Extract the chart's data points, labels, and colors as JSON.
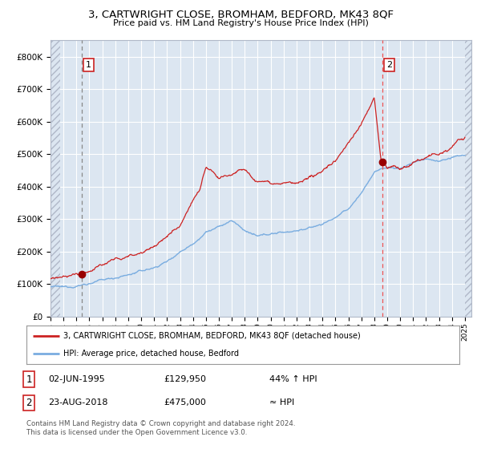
{
  "title1": "3, CARTWRIGHT CLOSE, BROMHAM, BEDFORD, MK43 8QF",
  "title2": "Price paid vs. HM Land Registry's House Price Index (HPI)",
  "legend_line1": "3, CARTWRIGHT CLOSE, BROMHAM, BEDFORD, MK43 8QF (detached house)",
  "legend_line2": "HPI: Average price, detached house, Bedford",
  "annotation1_label": "1",
  "annotation1_date": "02-JUN-1995",
  "annotation1_price": "£129,950",
  "annotation1_hpi": "44% ↑ HPI",
  "annotation2_label": "2",
  "annotation2_date": "23-AUG-2018",
  "annotation2_price": "£475,000",
  "annotation2_hpi": "≈ HPI",
  "copyright": "Contains HM Land Registry data © Crown copyright and database right 2024.\nThis data is licensed under the Open Government Licence v3.0.",
  "hpi_line_color": "#7aade0",
  "price_line_color": "#cc2222",
  "background_color": "#dce6f1",
  "plot_bg_color": "#dce6f1",
  "vline1_color": "#888888",
  "vline2_color": "#ee5555",
  "marker_color": "#990000",
  "ylim": [
    0,
    850000
  ],
  "yticks": [
    0,
    100000,
    200000,
    300000,
    400000,
    500000,
    600000,
    700000,
    800000
  ],
  "ytick_labels": [
    "£0",
    "£100K",
    "£200K",
    "£300K",
    "£400K",
    "£500K",
    "£600K",
    "£700K",
    "£800K"
  ],
  "sale1_x": 1995.42,
  "sale1_y": 129950,
  "sale2_x": 2018.64,
  "sale2_y": 475000,
  "xmin": 1993.0,
  "xmax": 2025.5,
  "hpi_anchors_x": [
    1993,
    1994,
    1995,
    1996,
    1997,
    1998,
    1999,
    2000,
    2001,
    2002,
    2003,
    2004,
    2005,
    2006,
    2007,
    2008,
    2009,
    2010,
    2011,
    2012,
    2013,
    2014,
    2015,
    2016,
    2017,
    2018,
    2019,
    2020,
    2021,
    2022,
    2023,
    2024,
    2025
  ],
  "hpi_anchors_y": [
    92000,
    90000,
    95000,
    102000,
    112000,
    120000,
    128000,
    140000,
    150000,
    170000,
    200000,
    225000,
    260000,
    275000,
    295000,
    265000,
    245000,
    255000,
    260000,
    265000,
    272000,
    285000,
    305000,
    330000,
    380000,
    445000,
    460000,
    455000,
    475000,
    485000,
    478000,
    488000,
    497000
  ],
  "price_anchors_x": [
    1993,
    1994,
    1995,
    1996,
    1997,
    1998,
    1999,
    2000,
    2001,
    2002,
    2003,
    2004,
    2004.5,
    2005,
    2005.5,
    2006,
    2006.5,
    2007,
    2007.5,
    2008,
    2008.5,
    2009,
    2009.5,
    2010,
    2011,
    2012,
    2013,
    2014,
    2015,
    2016,
    2017,
    2017.5,
    2018,
    2018.5,
    2019,
    2019.5,
    2020,
    2020.5,
    2021,
    2021.5,
    2022,
    2022.5,
    2023,
    2023.5,
    2024,
    2024.5,
    2025
  ],
  "price_anchors_y": [
    118000,
    120000,
    128000,
    140000,
    160000,
    175000,
    185000,
    200000,
    215000,
    245000,
    285000,
    360000,
    390000,
    460000,
    445000,
    420000,
    430000,
    440000,
    455000,
    460000,
    435000,
    415000,
    420000,
    415000,
    410000,
    408000,
    420000,
    450000,
    480000,
    535000,
    595000,
    630000,
    675000,
    485000,
    460000,
    462000,
    455000,
    460000,
    475000,
    480000,
    490000,
    500000,
    495000,
    505000,
    520000,
    540000,
    548000
  ]
}
